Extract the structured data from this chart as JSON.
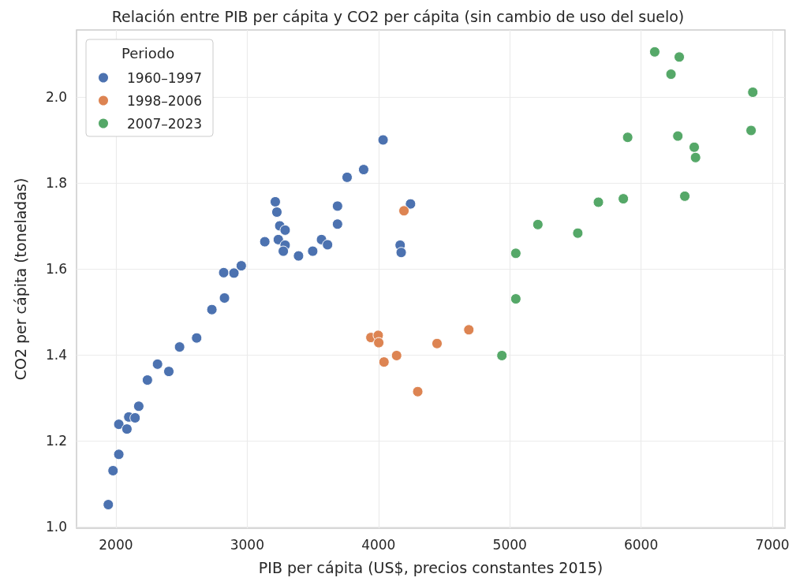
{
  "chart_data": {
    "type": "scatter",
    "title": "Relación entre PIB per cápita y CO2 per cápita (sin cambio de uso del suelo)",
    "xlabel": "PIB per cápita (US$, precios constantes 2015)",
    "ylabel": "CO2 per cápita (toneladas)",
    "legend_title": "Periodo",
    "legend": "top left",
    "grid": true,
    "marker": "circle",
    "xlim": [
      1700,
      7096
    ],
    "xticks": [
      2000,
      3000,
      4000,
      5000,
      6000,
      7000
    ],
    "ylim": [
      0.996,
      2.156
    ],
    "yticks": [
      {
        "value": 1,
        "label": "1.0"
      },
      1.2,
      1.4,
      1.6,
      1.8,
      {
        "value": 2,
        "label": "2.0"
      }
    ],
    "series": [
      {
        "name": "1960–1997",
        "color": "#4c72b0",
        "x": [
          1942,
          1978,
          2022,
          2022,
          2084,
          2098,
          2146,
          2174,
          2240,
          2317,
          2403,
          2485,
          2615,
          2731,
          2827,
          2821,
          2899,
          2955,
          3134,
          3214,
          3226,
          3248,
          3289,
          3237,
          3289,
          3275,
          3391,
          3499,
          3566,
          3612,
          3688,
          3688,
          3761,
          3887,
          4035,
          4165,
          4173,
          4244
        ],
        "values": [
          1.051,
          1.13,
          1.168,
          1.238,
          1.227,
          1.255,
          1.253,
          1.28,
          1.341,
          1.378,
          1.361,
          1.418,
          1.439,
          1.505,
          1.532,
          1.591,
          1.59,
          1.607,
          1.663,
          1.756,
          1.732,
          1.7,
          1.69,
          1.668,
          1.655,
          1.641,
          1.63,
          1.641,
          1.668,
          1.656,
          1.704,
          1.746,
          1.813,
          1.831,
          1.9,
          1.655,
          1.638,
          1.751
        ]
      },
      {
        "name": "1998–2006",
        "color": "#dd8452",
        "x": [
          4194,
          3942,
          3998,
          4002,
          4138,
          4042,
          4446,
          4688,
          4299
        ],
        "values": [
          1.735,
          1.44,
          1.445,
          1.428,
          1.398,
          1.383,
          1.426,
          1.458,
          1.314
        ]
      },
      {
        "name": "2007–2023",
        "color": "#55a868",
        "x": [
          4940,
          5046,
          5046,
          5214,
          5518,
          5675,
          5865,
          6333,
          6104,
          6291,
          6228,
          6851,
          5898,
          6280,
          6405,
          6415,
          6838
        ],
        "values": [
          1.398,
          1.53,
          1.636,
          1.703,
          1.683,
          1.755,
          1.763,
          1.769,
          2.105,
          2.093,
          2.053,
          2.011,
          1.906,
          1.909,
          1.883,
          1.859,
          1.922
        ]
      }
    ]
  }
}
